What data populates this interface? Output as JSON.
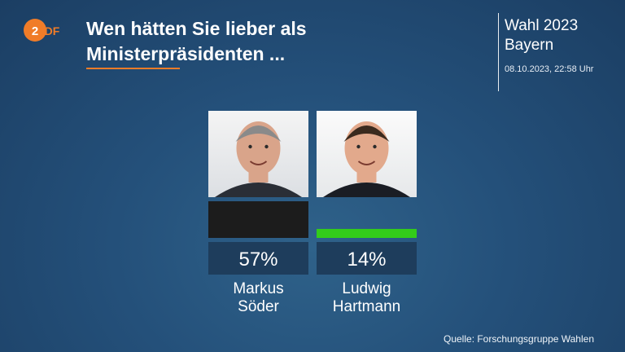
{
  "branding": {
    "logo_text": "ZDF",
    "accent_color": "#f07c28"
  },
  "header": {
    "title_line1": "Wen hätten Sie lieber als",
    "title_line2": "Ministerpräsidenten ...",
    "election": "Wahl 2023",
    "region": "Bayern",
    "timestamp": "08.10.2023, 22:58 Uhr"
  },
  "footer": {
    "source": "Quelle: Forschungsgruppe Wahlen"
  },
  "chart_data": {
    "type": "bar",
    "categories": [
      "Markus Söder",
      "Ludwig Hartmann"
    ],
    "name_lines": [
      [
        "Markus",
        "Söder"
      ],
      [
        "Ludwig",
        "Hartmann"
      ]
    ],
    "values": [
      57,
      14
    ],
    "value_labels": [
      "57%",
      "14%"
    ],
    "colors": [
      "#1c1c1c",
      "#33cc1a"
    ],
    "ylim": [
      0,
      100
    ],
    "title": "",
    "xlabel": "",
    "ylabel": ""
  }
}
